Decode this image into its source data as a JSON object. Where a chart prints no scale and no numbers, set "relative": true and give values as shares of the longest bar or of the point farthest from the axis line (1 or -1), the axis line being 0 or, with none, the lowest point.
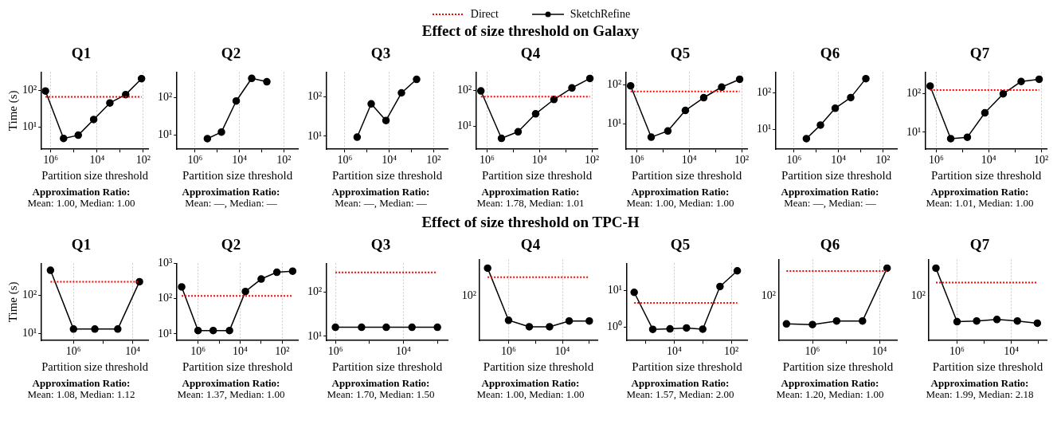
{
  "chart_data": [
    {
      "type": "line",
      "title": "Q1",
      "legend": "top",
      "xlabel": "Partition size threshold",
      "ylabel": "Time (s)",
      "log": "xy",
      "grid": "x",
      "xlim": [
        2500000,
        62
      ],
      "xticks": [
        {
          "value": 1000000,
          "label": "10⁶"
        },
        {
          "value": 100000,
          "label": null
        },
        {
          "value": 10000,
          "label": "10⁴"
        },
        {
          "value": 1000,
          "label": null
        },
        {
          "value": 100,
          "label": "10²"
        }
      ],
      "ylim": [
        2.5,
        310
      ],
      "yticks": [
        {
          "value": 10,
          "label": "10¹"
        },
        {
          "value": 100,
          "label": "10²"
        }
      ],
      "annotations": [
        "Approximation Ratio:",
        "Mean: 1.00, Median: 1.00"
      ],
      "series": [
        {
          "name": "Direct",
          "color": "#ff0000",
          "line_style": "dotted",
          "marker": "none",
          "x": [
            1700000,
            120
          ],
          "values": [
            66,
            66
          ]
        },
        {
          "name": "SketchRefine",
          "color": "#000000",
          "marker": "circle",
          "x": [
            1700000,
            280000,
            65000,
            14000,
            2800,
            580,
            120
          ],
          "values": [
            95,
            4.9,
            6,
            16,
            45,
            76,
            205
          ]
        }
      ]
    },
    {
      "type": "line",
      "title": "Q2",
      "xlabel": "Partition size threshold",
      "log": "xy",
      "grid": "x",
      "xlim": [
        6600000,
        23
      ],
      "xticks": [
        {
          "value": 1000000,
          "label": "10⁶"
        },
        {
          "value": 100000,
          "label": null
        },
        {
          "value": 10000,
          "label": "10⁴"
        },
        {
          "value": 1000,
          "label": null
        },
        {
          "value": 100,
          "label": "10²"
        }
      ],
      "ylim": [
        4.2,
        470
      ],
      "yticks": [
        {
          "value": 10,
          "label": "10¹"
        },
        {
          "value": 100,
          "label": "10²"
        }
      ],
      "annotations": [
        "Approximation Ratio:",
        "Mean: —, Median: —"
      ],
      "series": [
        {
          "color": "#000000",
          "marker": "circle",
          "x": [
            280000,
            65000,
            14000,
            2800,
            580
          ],
          "values": [
            8,
            12,
            80,
            320,
            260
          ]
        }
      ]
    },
    {
      "type": "line",
      "title": "Q3",
      "xlabel": "Partition size threshold",
      "log": "xy",
      "grid": "x",
      "xlim": [
        6600000,
        23
      ],
      "xticks": [
        {
          "value": 1000000,
          "label": "10⁶"
        },
        {
          "value": 100000,
          "label": null
        },
        {
          "value": 10000,
          "label": "10⁴"
        },
        {
          "value": 1000,
          "label": null
        },
        {
          "value": 100,
          "label": "10²"
        }
      ],
      "ylim": [
        4.7,
        420
      ],
      "yticks": [
        {
          "value": 10,
          "label": "10¹"
        },
        {
          "value": 100,
          "label": "10²"
        }
      ],
      "annotations": [
        "Approximation Ratio:",
        "Mean: —, Median: —"
      ],
      "series": [
        {
          "color": "#000000",
          "marker": "circle",
          "x": [
            280000,
            65000,
            14000,
            2800,
            580
          ],
          "values": [
            9.5,
            66,
            25,
            125,
            275
          ]
        }
      ]
    },
    {
      "type": "line",
      "title": "Q4",
      "xlabel": "Partition size threshold",
      "log": "xy",
      "grid": "x",
      "xlim": [
        2500000,
        62
      ],
      "xticks": [
        {
          "value": 1000000,
          "label": "10⁶"
        },
        {
          "value": 100000,
          "label": null
        },
        {
          "value": 10000,
          "label": "10⁴"
        },
        {
          "value": 1000,
          "label": null
        },
        {
          "value": 100,
          "label": "10²"
        }
      ],
      "ylim": [
        2.3,
        316
      ],
      "yticks": [
        {
          "value": 10,
          "label": "10¹"
        },
        {
          "value": 100,
          "label": "10²"
        }
      ],
      "subtitle": "Effect of size threshold on Galaxy",
      "annotations": [
        "Approximation Ratio:",
        "Mean: 1.78, Median: 1.01"
      ],
      "series": [
        {
          "color": "#ff0000",
          "line_style": "dotted",
          "marker": "none",
          "x": [
            1700000,
            120
          ],
          "values": [
            66,
            66
          ]
        },
        {
          "color": "#000000",
          "marker": "circle",
          "x": [
            1700000,
            280000,
            65000,
            14000,
            2800,
            580,
            120
          ],
          "values": [
            95,
            4.6,
            7,
            22,
            55,
            115,
            210
          ]
        }
      ]
    },
    {
      "type": "line",
      "title": "Q5",
      "xlabel": "Partition size threshold",
      "log": "xy",
      "grid": "x",
      "xlim": [
        2500000,
        62
      ],
      "xticks": [
        {
          "value": 1000000,
          "label": "10⁶"
        },
        {
          "value": 100000,
          "label": null
        },
        {
          "value": 10000,
          "label": "10⁴"
        },
        {
          "value": 1000,
          "label": null
        },
        {
          "value": 100,
          "label": "10²"
        }
      ],
      "ylim": [
        2.2,
        215
      ],
      "yticks": [
        {
          "value": 10,
          "label": "10¹"
        },
        {
          "value": 100,
          "label": "10²"
        }
      ],
      "annotations": [
        "Approximation Ratio:",
        "Mean: 1.00, Median: 1.00"
      ],
      "series": [
        {
          "color": "#ff0000",
          "line_style": "dotted",
          "marker": "none",
          "x": [
            1700000,
            120
          ],
          "values": [
            68,
            68
          ]
        },
        {
          "color": "#000000",
          "marker": "circle",
          "x": [
            1700000,
            280000,
            65000,
            14000,
            2800,
            580,
            120
          ],
          "values": [
            95,
            4.5,
            6.5,
            22,
            47,
            88,
            140
          ]
        }
      ]
    },
    {
      "type": "line",
      "title": "Q6",
      "xlabel": "Partition size threshold",
      "log": "xy",
      "grid": "x",
      "xlim": [
        6600000,
        23
      ],
      "xticks": [
        {
          "value": 1000000,
          "label": "10⁶"
        },
        {
          "value": 100000,
          "label": null
        },
        {
          "value": 10000,
          "label": "10⁴"
        },
        {
          "value": 1000,
          "label": null
        },
        {
          "value": 100,
          "label": "10²"
        }
      ],
      "ylim": [
        2.8,
        380
      ],
      "yticks": [
        {
          "value": 10,
          "label": "10¹"
        },
        {
          "value": 100,
          "label": "10²"
        }
      ],
      "annotations": [
        "Approximation Ratio:",
        "Mean: —, Median: —"
      ],
      "series": [
        {
          "color": "#000000",
          "marker": "circle",
          "x": [
            280000,
            65000,
            14000,
            2800,
            580
          ],
          "values": [
            5.5,
            13,
            38,
            75,
            250
          ]
        }
      ]
    },
    {
      "type": "line",
      "title": "Q7",
      "xlabel": "Partition size threshold",
      "log": "xy",
      "grid": "x",
      "xlim": [
        2500000,
        62
      ],
      "xticks": [
        {
          "value": 1000000,
          "label": "10⁶"
        },
        {
          "value": 100000,
          "label": null
        },
        {
          "value": 10000,
          "label": "10⁴"
        },
        {
          "value": 1000,
          "label": null
        },
        {
          "value": 100,
          "label": "10²"
        }
      ],
      "ylim": [
        3.6,
        370
      ],
      "yticks": [
        {
          "value": 10,
          "label": "10¹"
        },
        {
          "value": 100,
          "label": "10²"
        }
      ],
      "annotations": [
        "Approximation Ratio:",
        "Mean: 1.01, Median: 1.00"
      ],
      "series": [
        {
          "color": "#ff0000",
          "line_style": "dotted",
          "marker": "none",
          "x": [
            1700000,
            120
          ],
          "values": [
            125,
            125
          ]
        },
        {
          "color": "#000000",
          "marker": "circle",
          "x": [
            1700000,
            280000,
            65000,
            14000,
            2800,
            580,
            120
          ],
          "values": [
            160,
            6.8,
            7.4,
            32,
            100,
            210,
            240
          ]
        }
      ]
    },
    {
      "type": "line",
      "title": "Q1",
      "xlabel": "Partition size threshold",
      "ylabel": "Time (s)",
      "log": "xy",
      "grid": "x",
      "xlim": [
        12000000,
        3000
      ],
      "xticks": [
        {
          "value": 1000000,
          "label": "10⁶"
        },
        {
          "value": 100000,
          "label": null
        },
        {
          "value": 10000,
          "label": "10⁴"
        }
      ],
      "ylim": [
        6.5,
        700
      ],
      "yticks": [
        {
          "value": 10,
          "label": "10¹"
        },
        {
          "value": 100,
          "label": "10²"
        }
      ],
      "annotations": [
        "Approximation Ratio:",
        "Mean: 1.08, Median: 1.12"
      ],
      "series": [
        {
          "color": "#ff0000",
          "line_style": "dotted",
          "marker": "none",
          "x": [
            6000000,
            5900
          ],
          "values": [
            230,
            230
          ]
        },
        {
          "color": "#000000",
          "marker": "circle",
          "x": [
            6000000,
            1000000,
            190000,
            32000,
            5900
          ],
          "values": [
            460,
            13,
            13,
            13,
            230
          ]
        }
      ]
    },
    {
      "type": "line",
      "title": "Q2",
      "xlabel": "Partition size threshold",
      "log": "xy",
      "grid": "x",
      "xlim": [
        10000000,
        18
      ],
      "xticks": [
        {
          "value": 1000000,
          "label": "10⁶"
        },
        {
          "value": 100000,
          "label": null
        },
        {
          "value": 10000,
          "label": "10⁴"
        },
        {
          "value": 1000,
          "label": null
        },
        {
          "value": 100,
          "label": "10²"
        }
      ],
      "ylim": [
        6.5,
        1000
      ],
      "yticks": [
        {
          "value": 10,
          "label": "10¹"
        },
        {
          "value": 100,
          "label": "10²"
        },
        {
          "value": 1000,
          "label": "10³"
        }
      ],
      "annotations": [
        "Approximation Ratio:",
        "Mean: 1.37, Median: 1.00"
      ],
      "series": [
        {
          "color": "#ff0000",
          "line_style": "dotted",
          "marker": "none",
          "x": [
            6000000,
            32
          ],
          "values": [
            120,
            120
          ]
        },
        {
          "color": "#000000",
          "marker": "circle",
          "x": [
            6000000,
            1000000,
            190000,
            32000,
            5600,
            1000,
            180,
            32
          ],
          "values": [
            215,
            12.5,
            12.5,
            12.5,
            160,
            360,
            560,
            600
          ]
        }
      ]
    },
    {
      "type": "line",
      "title": "Q3",
      "xlabel": "Partition size threshold",
      "log": "xy",
      "grid": "x",
      "xlim": [
        1800000,
        500
      ],
      "xticks": [
        {
          "value": 1000000,
          "label": "10⁶"
        },
        {
          "value": 100000,
          "label": null
        },
        {
          "value": 10000,
          "label": "10⁴"
        },
        {
          "value": 1000,
          "label": null
        }
      ],
      "ylim": [
        8,
        450
      ],
      "yticks": [
        {
          "value": 10,
          "label": "10¹"
        },
        {
          "value": 100,
          "label": "10²"
        }
      ],
      "annotations": [
        "Approximation Ratio:",
        "Mean: 1.70, Median: 1.50"
      ],
      "series": [
        {
          "color": "#ff0000",
          "line_style": "dotted",
          "marker": "none",
          "x": [
            1000000,
            1000
          ],
          "values": [
            280,
            280
          ]
        },
        {
          "color": "#000000",
          "marker": "circle",
          "x": [
            1000000,
            170000,
            32000,
            5600,
            1000
          ],
          "values": [
            16,
            16,
            16,
            16,
            16
          ]
        }
      ]
    },
    {
      "type": "line",
      "title": "Q4",
      "xlabel": "Partition size threshold",
      "log": "x",
      "relative": true,
      "grid": "x",
      "xlim": [
        12000000,
        500
      ],
      "xticks": [
        {
          "value": 1000000,
          "label": "10⁶"
        },
        {
          "value": 100000,
          "label": null
        },
        {
          "value": 10000,
          "label": "10⁴"
        },
        {
          "value": 1000,
          "label": null
        }
      ],
      "subtitle": "Effect of size threshold on TPC-H",
      "annotations": [
        "Approximation Ratio:",
        "Mean: 1.00, Median: 1.00",
        "10²"
      ],
      "series": [
        {
          "color": "#ff0000",
          "line_style": "dotted",
          "marker": "none",
          "x": [
            6000000,
            1000
          ],
          "values": [
            0.875,
            0.875
          ]
        },
        {
          "color": "#000000",
          "marker": "circle",
          "x": [
            6000000,
            1000000,
            170000,
            30000,
            5600,
            1000
          ],
          "values": [
            1,
            0.28,
            0.19,
            0.19,
            0.27,
            0.27
          ]
        }
      ]
    },
    {
      "type": "line",
      "title": "Q5",
      "xlabel": "Partition size threshold",
      "log": "xy",
      "grid": "x",
      "xlim": [
        450000,
        28
      ],
      "xticks": [
        {
          "value": 100000,
          "label": null
        },
        {
          "value": 10000,
          "label": "10⁴"
        },
        {
          "value": 1000,
          "label": null
        },
        {
          "value": 100,
          "label": "10²"
        }
      ],
      "ylim": [
        0.43,
        56
      ],
      "yticks": [
        {
          "value": 1,
          "label": "10⁰"
        },
        {
          "value": 10,
          "label": "10¹"
        }
      ],
      "annotations": [
        "Approximation Ratio:",
        "Mean: 1.57, Median: 2.00"
      ],
      "series": [
        {
          "color": "#ff0000",
          "line_style": "dotted",
          "marker": "none",
          "x": [
            250000,
            62
          ],
          "values": [
            4.6,
            4.6
          ]
        },
        {
          "color": "#000000",
          "marker": "circle",
          "x": [
            250000,
            56000,
            14000,
            3700,
            1000,
            250,
            62
          ],
          "values": [
            9,
            0.87,
            0.9,
            0.95,
            0.88,
            13,
            35
          ]
        }
      ]
    },
    {
      "type": "line",
      "title": "Q6",
      "xlabel": "Partition size threshold",
      "log": "x",
      "grid": "x",
      "xlim": [
        10000000,
        3000
      ],
      "xticks": [
        {
          "value": 1000000,
          "label": "10⁶"
        },
        {
          "value": 100000,
          "label": null
        },
        {
          "value": 10000,
          "label": "10⁴"
        }
      ],
      "relative": true,
      "annotations": [
        "Approximation Ratio:",
        "Mean: 1.20, Median: 1.00",
        "10²"
      ],
      "series": [
        {
          "color": "#ff0000",
          "line_style": "dotted",
          "marker": "none",
          "x": [
            6000000,
            5900
          ],
          "values": [
            0.96,
            0.96
          ]
        },
        {
          "color": "#000000",
          "marker": "circle",
          "x": [
            6000000,
            1000000,
            190000,
            32000,
            5900
          ],
          "values": [
            0.23,
            0.22,
            0.27,
            0.27,
            1
          ]
        }
      ]
    },
    {
      "type": "line",
      "title": "Q7",
      "xlabel": "Partition size threshold",
      "log": "x",
      "grid": "x",
      "xlim": [
        11000000,
        500
      ],
      "xticks": [
        {
          "value": 1000000,
          "label": "10⁶"
        },
        {
          "value": 100000,
          "label": null
        },
        {
          "value": 10000,
          "label": "10⁴"
        },
        {
          "value": 1000,
          "label": null
        }
      ],
      "relative": true,
      "annotations": [
        "Approximation Ratio:",
        "Mean: 1.99, Median: 2.18",
        "10²"
      ],
      "series": [
        {
          "color": "#ff0000",
          "line_style": "dotted",
          "marker": "none",
          "x": [
            6000000,
            1100
          ],
          "values": [
            0.8,
            0.8
          ]
        },
        {
          "color": "#000000",
          "marker": "circle",
          "x": [
            6000000,
            1000000,
            190000,
            34000,
            6000,
            1100
          ],
          "values": [
            1,
            0.26,
            0.27,
            0.29,
            0.27,
            0.24
          ]
        }
      ]
    }
  ]
}
